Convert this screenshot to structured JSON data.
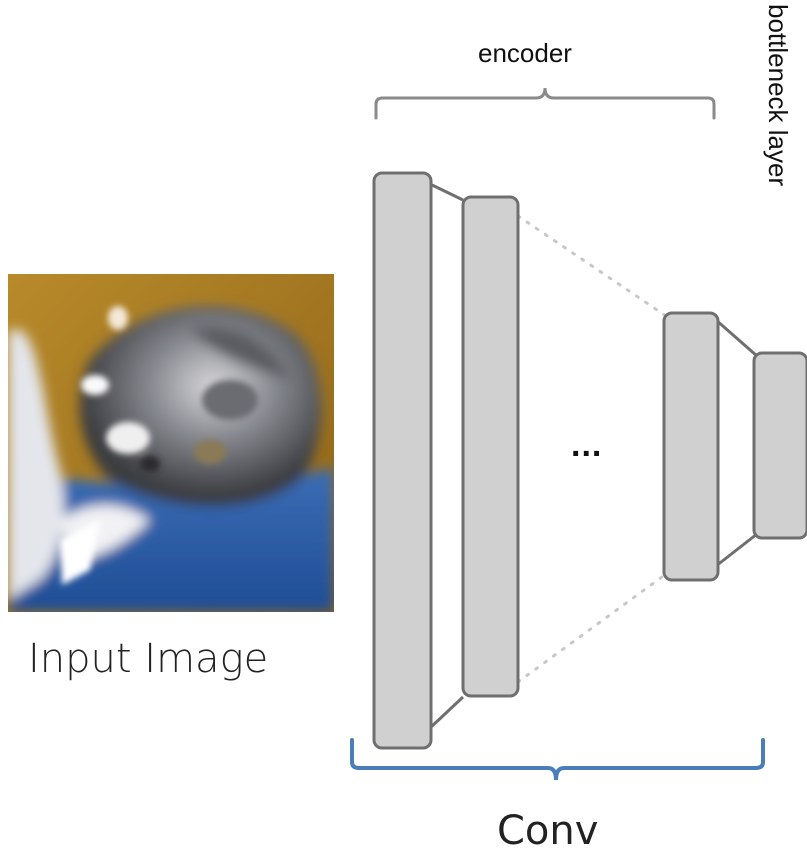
{
  "labels": {
    "encoder": "encoder",
    "bottleneck": "bottleneck layer",
    "input_image": "Input Image",
    "conv": "Conv",
    "ellipsis": "..."
  },
  "colors": {
    "layer_fill": "#d0d0d0",
    "layer_stroke": "#6f6f6f",
    "encoder_brace": "#8a8a8a",
    "conv_brace": "#4a7ebb",
    "dotted_connector": "#c8c8c8",
    "solid_connector": "#6f6f6f"
  },
  "input_image": {
    "subject": "cat",
    "description_icon": "cat-photo-icon"
  }
}
